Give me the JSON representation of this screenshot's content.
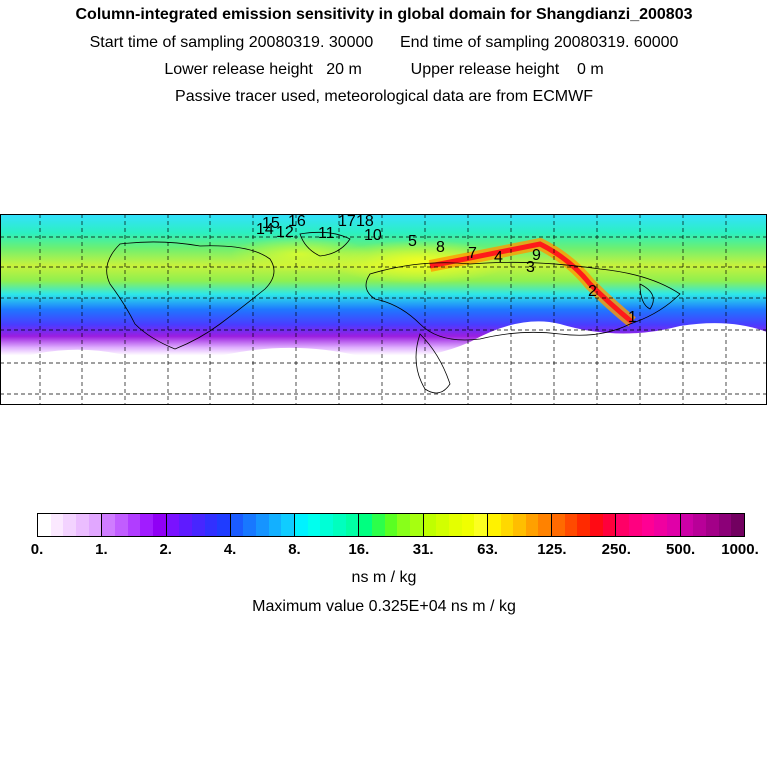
{
  "header": {
    "title": "Column-integrated emission sensitivity in global domain for Shangdianzi_200803",
    "line2": "Start time of sampling 20080319. 30000      End time of sampling 20080319. 60000",
    "line3": "Lower release height   20 m           Upper release height    0 m",
    "line4": "Passive tracer used, meteorological data are from ECMWF"
  },
  "map": {
    "trajectory_labels": [
      "1",
      "2",
      "3",
      "4",
      "5",
      "7",
      "8",
      "9",
      "10",
      "11",
      "12",
      "14",
      "15",
      "16",
      "17",
      "18"
    ],
    "colors": {
      "background_low": "#ffffff",
      "polar": "#35e0ff",
      "mid": "#8ef050",
      "yellow": "#e8f43c",
      "band_blue": "#1e78ff",
      "band_purple": "#9a1ee0",
      "plume_red": "#ff1a1a",
      "plume_orange": "#ff9a00"
    }
  },
  "colorbar": {
    "tick_labels": [
      "0.",
      "1.",
      "2.",
      "4.",
      "8.",
      "16.",
      "31.",
      "63.",
      "125.",
      "250.",
      "500.",
      "1000."
    ],
    "segments": [
      [
        "#ffffff",
        "#fbe9ff",
        "#f3d3ff",
        "#ebbdff",
        "#e1a7ff"
      ],
      [
        "#cf7cff",
        "#c15dff",
        "#b13dff",
        "#a11cff",
        "#9000f5"
      ],
      [
        "#7a12ff",
        "#5f1bff",
        "#4726ff",
        "#3130ff",
        "#1f3cff"
      ],
      [
        "#1b5cff",
        "#1878ff",
        "#1694ff",
        "#13b0ff",
        "#10ccff"
      ],
      [
        "#00f2ff",
        "#00ffee",
        "#00ffd6",
        "#00ffbe",
        "#00ffa4"
      ],
      [
        "#00ff80",
        "#2cff4a",
        "#5aff22",
        "#88ff1a",
        "#a6ff10"
      ],
      [
        "#bfff00",
        "#d2ff00",
        "#e4ff00",
        "#f0ff00",
        "#fcff20"
      ],
      [
        "#fff200",
        "#ffd800",
        "#ffbe00",
        "#ffa000",
        "#ff8200"
      ],
      [
        "#ff6a00",
        "#ff4a00",
        "#ff2a00",
        "#ff0a14",
        "#ff003c"
      ],
      [
        "#ff0066",
        "#ff0080",
        "#ff0094",
        "#f000a0",
        "#e000a8"
      ],
      [
        "#cc00a6",
        "#b80098",
        "#a30088",
        "#8c0078",
        "#720060"
      ]
    ],
    "units": "ns m / kg",
    "maximum": "Maximum value  0.325E+04 ns m / kg"
  }
}
